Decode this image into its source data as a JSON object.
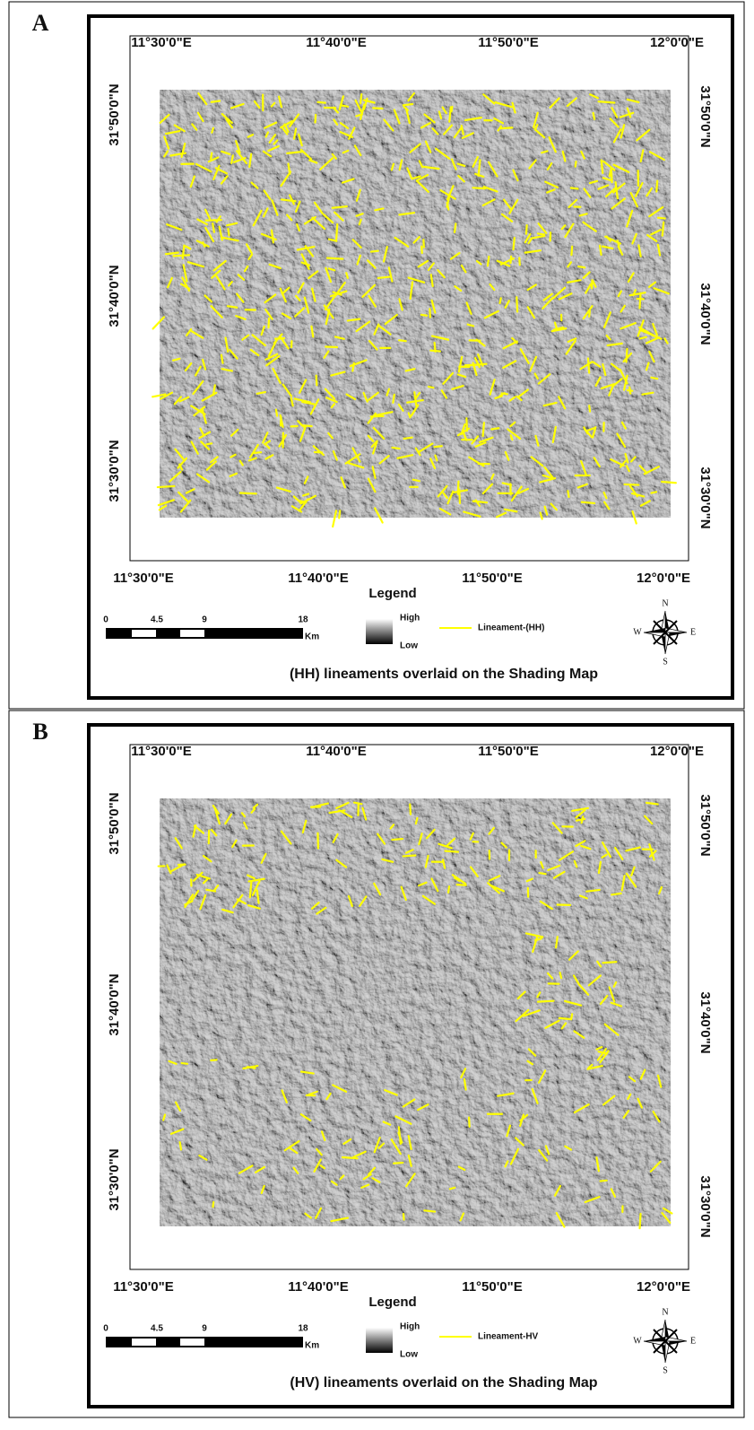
{
  "panels": [
    {
      "label": "A",
      "top_lon_labels": [
        "11°30'0\"E",
        "11°40'0\"E",
        "11°50'0\"E",
        "12°0'0\"E"
      ],
      "bottom_lon_labels": [
        "11°30'0\"E",
        "11°40'0\"E",
        "11°50'0\"E",
        "12°0'0\"E"
      ],
      "left_lat_labels": [
        "31°50'0\"N",
        "31°40'0\"N",
        "31°30'0\"N"
      ],
      "right_lat_labels": [
        "31°50'0\"N",
        "31°40'0\"N",
        "31°30'0\"N"
      ],
      "legend": {
        "title": "Legend",
        "high": "High",
        "low": "Low",
        "lineament": "Lineament-(HH)"
      },
      "scale_bar": {
        "labels": [
          "0",
          "4.5",
          "9",
          "18"
        ],
        "unit": "Km"
      },
      "compass": {
        "n": "N",
        "s": "S",
        "e": "E",
        "w": "W"
      },
      "caption": "(HH) lineaments overlaid on the Shading Map"
    },
    {
      "label": "B",
      "top_lon_labels": [
        "11°30'0\"E",
        "11°40'0\"E",
        "11°50'0\"E",
        "12°0'0\"E"
      ],
      "bottom_lon_labels": [
        "11°30'0\"E",
        "11°40'0\"E",
        "11°50'0\"E",
        "12°0'0\"E"
      ],
      "left_lat_labels": [
        "31°50'0\"N",
        "31°40'0\"N",
        "31°30'0\"N"
      ],
      "right_lat_labels": [
        "31°50'0\"N",
        "31°40'0\"N",
        "31°30'0\"N"
      ],
      "legend": {
        "title": "Legend",
        "high": "High",
        "low": "Low",
        "lineament": "Lineament-HV"
      },
      "scale_bar": {
        "labels": [
          "0",
          "4.5",
          "9",
          "18"
        ],
        "unit": "Km"
      },
      "compass": {
        "n": "N",
        "s": "S",
        "e": "E",
        "w": "W"
      },
      "caption": "(HV) lineaments overlaid on the Shading Map"
    }
  ]
}
